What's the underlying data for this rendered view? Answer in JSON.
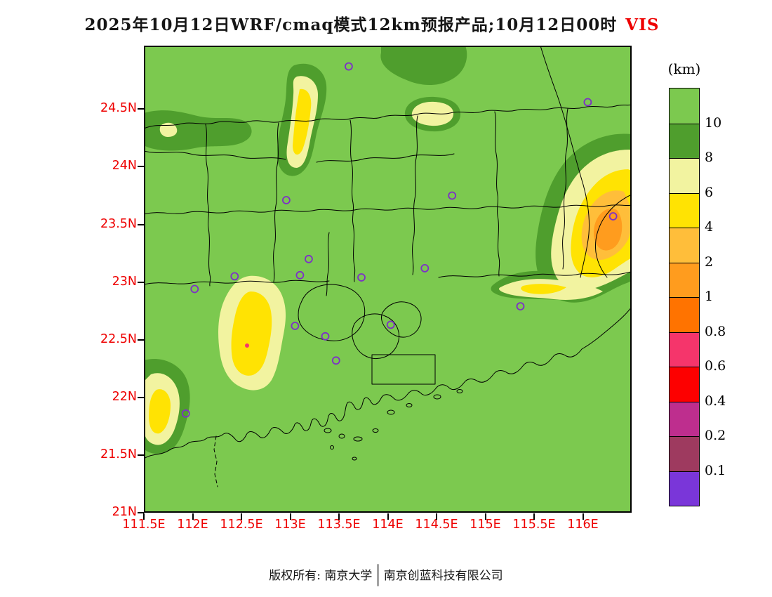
{
  "title": {
    "main": "2025年10月12日WRF/cmaq模式12km预报产品;10月12日00时",
    "highlight": "VIS"
  },
  "colorbar": {
    "unit": "(km)",
    "labels": [
      "10",
      "8",
      "6",
      "4",
      "2",
      "1",
      "0.8",
      "0.6",
      "0.4",
      "0.2",
      "0.1"
    ],
    "colors": [
      "#7CC94F",
      "#4F9E2D",
      "#F2F3A0",
      "#FFE303",
      "#FFBE3A",
      "#FF9C1E",
      "#FF7300",
      "#F5356B",
      "#FD0000",
      "#BE2E8E",
      "#9E3A5F",
      "#7A36D9"
    ]
  },
  "axes": {
    "lon_range": [
      111.5,
      116.5
    ],
    "lat_range": [
      21.0,
      25.05
    ],
    "lat": [
      {
        "label": "24.5N",
        "value": 24.5
      },
      {
        "label": "24N",
        "value": 24.0
      },
      {
        "label": "23.5N",
        "value": 23.5
      },
      {
        "label": "23N",
        "value": 23.0
      },
      {
        "label": "22.5N",
        "value": 22.5
      },
      {
        "label": "22N",
        "value": 22.0
      },
      {
        "label": "21.5N",
        "value": 21.5
      },
      {
        "label": "21N",
        "value": 21.0
      }
    ],
    "lon": [
      {
        "label": "111.5E",
        "value": 111.5
      },
      {
        "label": "112E",
        "value": 112.0
      },
      {
        "label": "112.5E",
        "value": 112.5
      },
      {
        "label": "113E",
        "value": 113.0
      },
      {
        "label": "113.5E",
        "value": 113.5
      },
      {
        "label": "114E",
        "value": 114.0
      },
      {
        "label": "114.5E",
        "value": 114.5
      },
      {
        "label": "115E",
        "value": 115.0
      },
      {
        "label": "115.5E",
        "value": 115.5
      },
      {
        "label": "116E",
        "value": 116.0
      }
    ]
  },
  "stations": [
    {
      "lon": 113.6,
      "lat": 24.87
    },
    {
      "lon": 116.05,
      "lat": 24.56
    },
    {
      "lon": 112.96,
      "lat": 23.71
    },
    {
      "lon": 114.66,
      "lat": 23.75
    },
    {
      "lon": 116.31,
      "lat": 23.57
    },
    {
      "lon": 113.19,
      "lat": 23.2
    },
    {
      "lon": 113.1,
      "lat": 23.06
    },
    {
      "lon": 113.73,
      "lat": 23.04
    },
    {
      "lon": 114.38,
      "lat": 23.12
    },
    {
      "lon": 112.43,
      "lat": 23.05
    },
    {
      "lon": 112.02,
      "lat": 22.94
    },
    {
      "lon": 115.36,
      "lat": 22.79
    },
    {
      "lon": 113.05,
      "lat": 22.62
    },
    {
      "lon": 113.36,
      "lat": 22.53
    },
    {
      "lon": 114.03,
      "lat": 22.63
    },
    {
      "lon": 113.47,
      "lat": 22.32
    },
    {
      "lon": 111.93,
      "lat": 21.86
    }
  ],
  "colors": {
    "axis_red": "#EE0000",
    "boundary": "#000000",
    "station_purple": "#7D2FC8"
  },
  "footer": {
    "left": "版权所有: 南京大学",
    "separator": "│",
    "right": "南京创蓝科技有限公司"
  }
}
